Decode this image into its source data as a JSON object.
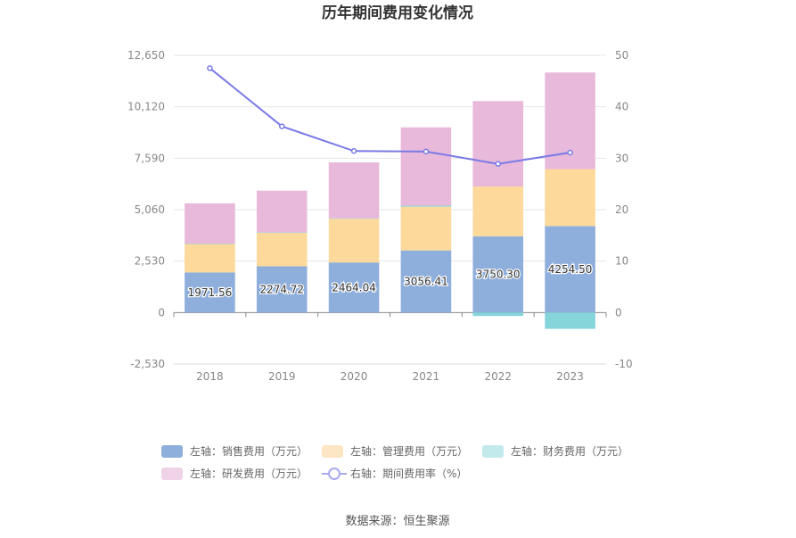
{
  "chart_data": {
    "type": "bar",
    "title": "历年期间费用变化情况",
    "categories": [
      "2018",
      "2019",
      "2020",
      "2021",
      "2022",
      "2023"
    ],
    "series": [
      {
        "name": "左轴：销售费用（万元）",
        "axis": "left",
        "kind": "bar",
        "stack": "cost",
        "color": "#8eaedb",
        "values": [
          1971.56,
          2274.72,
          2464.04,
          3056.41,
          3750.3,
          4254.5
        ],
        "labels": [
          "1971.56",
          "2274.72",
          "2464.04",
          "3056.41",
          "3750.30",
          "4254.50"
        ]
      },
      {
        "name": "左轴：管理费用（万元）",
        "axis": "left",
        "kind": "bar",
        "stack": "cost",
        "color": "#fdd99b",
        "values": [
          1400,
          1650,
          2150,
          2150,
          2450,
          2800
        ]
      },
      {
        "name": "左轴：财务费用（万元）",
        "axis": "left",
        "kind": "bar",
        "stack": "cost",
        "color": "#86d5db",
        "values": [
          20,
          20,
          20,
          50,
          -170,
          -800
        ]
      },
      {
        "name": "左轴：研发费用（万元）",
        "axis": "left",
        "kind": "bar",
        "stack": "cost",
        "color": "#e8b9da",
        "values": [
          1980,
          2050,
          2750,
          3850,
          4200,
          4750
        ]
      },
      {
        "name": "右轴：期间费用率（%）",
        "axis": "right",
        "kind": "line",
        "color": "#7a7ae6",
        "values": [
          47.5,
          36.2,
          31.4,
          31.3,
          28.9,
          31.1
        ]
      }
    ],
    "y_left": {
      "min": -2530,
      "max": 12650,
      "ticks": [
        -2530,
        0,
        2530,
        5060,
        7590,
        10120,
        12650
      ],
      "tick_labels": [
        "-2,530",
        "0",
        "2,530",
        "5,060",
        "7,590",
        "10,120",
        "12,650"
      ]
    },
    "y_right": {
      "min": -10,
      "max": 50,
      "ticks": [
        -10,
        0,
        10,
        20,
        30,
        40,
        50
      ],
      "tick_labels": [
        "-10",
        "0",
        "10",
        "20",
        "30",
        "40",
        "50"
      ]
    },
    "grid": true,
    "legend_position": "bottom",
    "source": "数据来源：恒生聚源"
  }
}
